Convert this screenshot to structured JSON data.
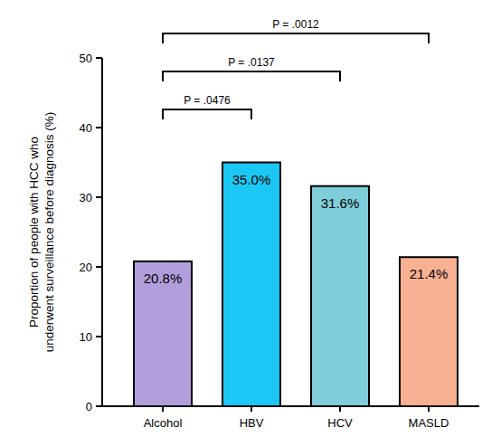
{
  "chart_data": {
    "type": "bar",
    "y_label": "Proportion of people with HCC who underwent surveillance before diagnosis (%)",
    "categories": [
      "Alcohol",
      "HBV",
      "HCV",
      "MASLD"
    ],
    "values": [
      20.8,
      35.0,
      31.6,
      21.4
    ],
    "value_labels": [
      "20.8%",
      "35.0%",
      "31.6%",
      "21.4%"
    ],
    "colors": [
      "#b19fdb",
      "#1bc8f5",
      "#7fcdd8",
      "#f8b092"
    ],
    "data_labels": true,
    "grid": false,
    "ylim": [
      0,
      50
    ],
    "yticks": [
      0,
      10,
      20,
      30,
      40,
      50
    ],
    "annotations": [
      {
        "text": "P = .0476",
        "between": [
          "Alcohol",
          "HBV"
        ]
      },
      {
        "text": "P = .0137",
        "between": [
          "Alcohol",
          "HCV"
        ]
      },
      {
        "text": "P = .0012",
        "between": [
          "Alcohol",
          "MASLD"
        ]
      }
    ]
  }
}
